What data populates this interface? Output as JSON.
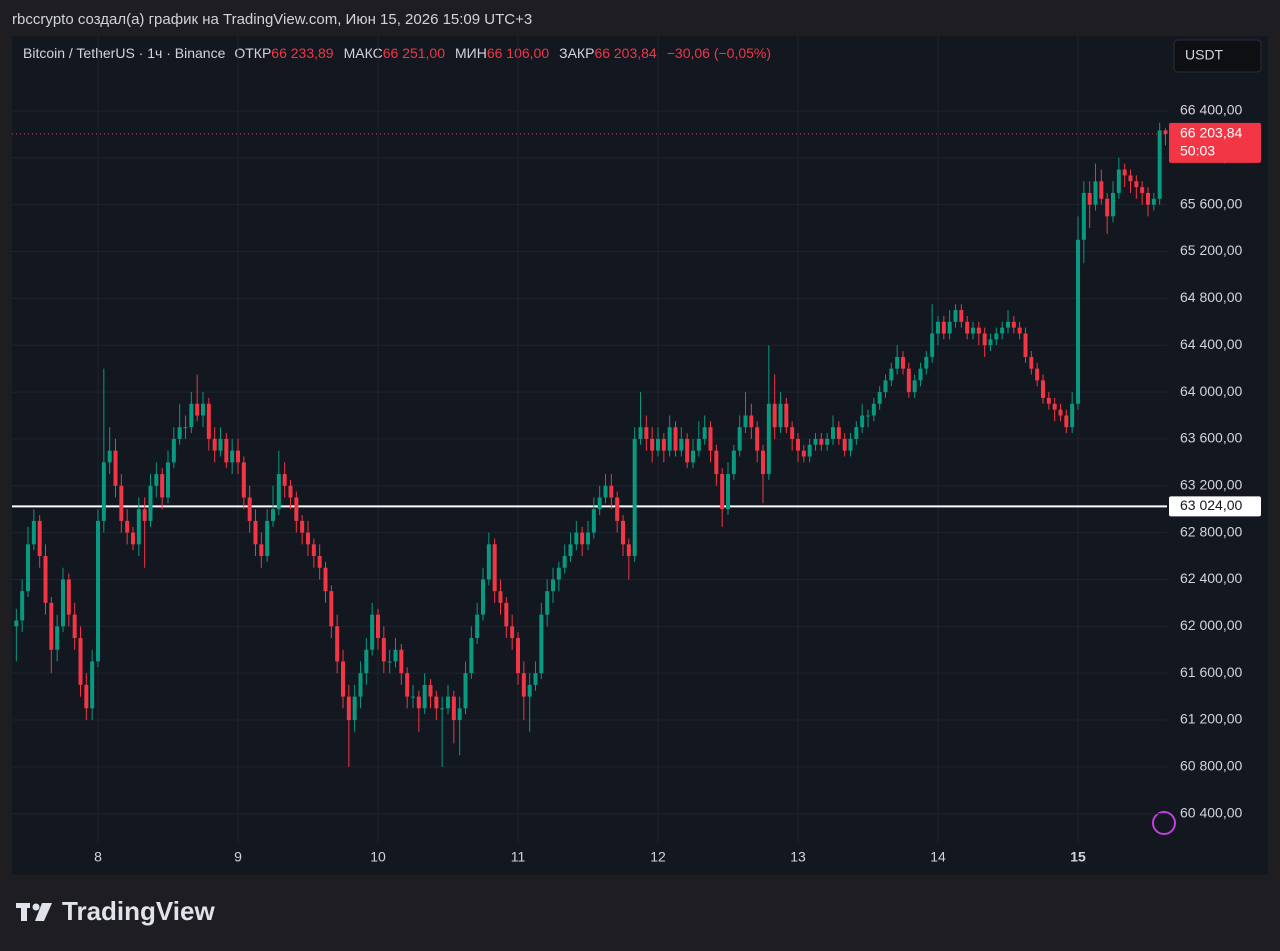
{
  "chart_data": {
    "type": "candlestick",
    "title": "rbccrypto создал(а) график на TradingView.com, Июн 15, 2026 15:09 UTC+3",
    "symbol": "Bitcoin / TetherUS · 1ч · Binance",
    "ohlc": [
      {
        "label": "ОТКР",
        "value": "66 233,89"
      },
      {
        "label": "МАКС",
        "value": "66 251,00"
      },
      {
        "label": "МИН",
        "value": "66 106,00"
      },
      {
        "label": "ЗАКР",
        "value": "66 203,84"
      }
    ],
    "change": "−30,06 (−0,05%)",
    "currency": "USDT",
    "logo": "TradingView",
    "up_color": "#089981",
    "down_color": "#f23645",
    "price_line": {
      "value": 63024,
      "label": "63 024,00",
      "color": "#ffffff"
    },
    "last_price": {
      "value": 66203.84,
      "label": "66 203,84",
      "countdown": "50:03"
    },
    "ylim": [
      60150,
      67040
    ],
    "yticks": [
      {
        "value": 60400,
        "label": "60 400,00"
      },
      {
        "value": 60800,
        "label": "60 800,00"
      },
      {
        "value": 61200,
        "label": "61 200,00"
      },
      {
        "value": 61600,
        "label": "61 600,00"
      },
      {
        "value": 62000,
        "label": "62 000,00"
      },
      {
        "value": 62400,
        "label": "62 400,00"
      },
      {
        "value": 62800,
        "label": "62 800,00"
      },
      {
        "value": 63200,
        "label": "63 200,00"
      },
      {
        "value": 63600,
        "label": "63 600,00"
      },
      {
        "value": 64000,
        "label": "64 000,00"
      },
      {
        "value": 64400,
        "label": "64 400,00"
      },
      {
        "value": 64800,
        "label": "64 800,00"
      },
      {
        "value": 65200,
        "label": "65 200,00"
      },
      {
        "value": 65600,
        "label": "65 600,00"
      },
      {
        "value": 66000,
        "label": "66 000,00"
      },
      {
        "value": 66400,
        "label": "66 400,00"
      }
    ],
    "grid": true,
    "categories": [
      null,
      null,
      null,
      null,
      null,
      null,
      null,
      null,
      null,
      null,
      null,
      null,
      null,
      null,
      "8",
      null,
      null,
      null,
      null,
      null,
      null,
      null,
      null,
      null,
      null,
      null,
      null,
      null,
      null,
      null,
      null,
      null,
      null,
      null,
      null,
      null,
      null,
      null,
      "9",
      null,
      null,
      null,
      null,
      null,
      null,
      null,
      null,
      null,
      null,
      null,
      null,
      null,
      null,
      null,
      null,
      null,
      null,
      null,
      null,
      null,
      null,
      null,
      "10",
      null,
      null,
      null,
      null,
      null,
      null,
      null,
      null,
      null,
      null,
      null,
      null,
      null,
      null,
      null,
      null,
      null,
      null,
      null,
      null,
      null,
      null,
      null,
      "11",
      null,
      null,
      null,
      null,
      null,
      null,
      null,
      null,
      null,
      null,
      null,
      null,
      null,
      null,
      null,
      null,
      null,
      null,
      null,
      null,
      null,
      null,
      null,
      "12",
      null,
      null,
      null,
      null,
      null,
      null,
      null,
      null,
      null,
      null,
      null,
      null,
      null,
      null,
      null,
      null,
      null,
      null,
      null,
      null,
      null,
      null,
      null,
      "13",
      null,
      null,
      null,
      null,
      null,
      null,
      null,
      null,
      null,
      null,
      null,
      null,
      null,
      null,
      null,
      null,
      null,
      null,
      null,
      null,
      null,
      null,
      null,
      "14",
      null,
      null,
      null,
      null,
      null,
      null,
      null,
      null,
      null,
      null,
      null,
      null,
      null,
      null,
      null,
      null,
      null,
      null,
      null,
      null,
      null,
      null,
      null,
      "15",
      null,
      null,
      null,
      null,
      null,
      null,
      null,
      null,
      null,
      null,
      null,
      null,
      null,
      null,
      null
    ],
    "candles": [
      [
        62000,
        62150,
        61700,
        62050
      ],
      [
        62050,
        62400,
        61950,
        62300
      ],
      [
        62300,
        62850,
        62250,
        62700
      ],
      [
        62700,
        63000,
        62650,
        62900
      ],
      [
        62900,
        62950,
        62500,
        62600
      ],
      [
        62600,
        62700,
        62100,
        62200
      ],
      [
        62200,
        62250,
        61600,
        61800
      ],
      [
        61800,
        62100,
        61700,
        62000
      ],
      [
        62000,
        62500,
        61950,
        62400
      ],
      [
        62400,
        62450,
        62000,
        62100
      ],
      [
        62100,
        62200,
        61800,
        61900
      ],
      [
        61900,
        62000,
        61400,
        61500
      ],
      [
        61500,
        61600,
        61200,
        61300
      ],
      [
        61300,
        61800,
        61200,
        61700
      ],
      [
        61700,
        63000,
        61650,
        62900
      ],
      [
        62900,
        64200,
        62800,
        63400
      ],
      [
        63400,
        63700,
        63300,
        63500
      ],
      [
        63500,
        63600,
        63100,
        63200
      ],
      [
        63200,
        63300,
        62800,
        62900
      ],
      [
        62900,
        63000,
        62700,
        62800
      ],
      [
        62800,
        62850,
        62650,
        62700
      ],
      [
        62700,
        63100,
        62600,
        63000
      ],
      [
        63000,
        63100,
        62500,
        62900
      ],
      [
        62900,
        63300,
        62850,
        63200
      ],
      [
        63200,
        63400,
        63100,
        63300
      ],
      [
        63300,
        63350,
        63000,
        63100
      ],
      [
        63100,
        63500,
        63050,
        63400
      ],
      [
        63400,
        63700,
        63350,
        63600
      ],
      [
        63600,
        63900,
        63550,
        63700
      ],
      [
        63700,
        63800,
        63600,
        63700
      ],
      [
        63700,
        64000,
        63650,
        63900
      ],
      [
        63900,
        64150,
        63750,
        63800
      ],
      [
        63800,
        64000,
        63700,
        63900
      ],
      [
        63900,
        63950,
        63500,
        63600
      ],
      [
        63600,
        63700,
        63400,
        63500
      ],
      [
        63500,
        63700,
        63450,
        63600
      ],
      [
        63600,
        63650,
        63350,
        63400
      ],
      [
        63400,
        63600,
        63300,
        63500
      ],
      [
        63500,
        63600,
        63300,
        63400
      ],
      [
        63400,
        63450,
        63000,
        63100
      ],
      [
        63100,
        63200,
        62800,
        62900
      ],
      [
        62900,
        63000,
        62600,
        62700
      ],
      [
        62700,
        62800,
        62500,
        62600
      ],
      [
        62600,
        63000,
        62550,
        62900
      ],
      [
        62900,
        63200,
        62850,
        63000
      ],
      [
        63000,
        63500,
        62950,
        63300
      ],
      [
        63300,
        63400,
        63100,
        63200
      ],
      [
        63200,
        63250,
        63000,
        63100
      ],
      [
        63100,
        63150,
        62800,
        62900
      ],
      [
        62900,
        62950,
        62700,
        62800
      ],
      [
        62800,
        62900,
        62600,
        62700
      ],
      [
        62700,
        62750,
        62500,
        62600
      ],
      [
        62600,
        62700,
        62400,
        62500
      ],
      [
        62500,
        62550,
        62200,
        62300
      ],
      [
        62300,
        62350,
        61900,
        62000
      ],
      [
        62000,
        62100,
        61600,
        61700
      ],
      [
        61700,
        61800,
        61300,
        61400
      ],
      [
        61400,
        61500,
        60800,
        61200
      ],
      [
        61200,
        61500,
        61100,
        61400
      ],
      [
        61400,
        61700,
        61300,
        61600
      ],
      [
        61600,
        61900,
        61500,
        61800
      ],
      [
        61800,
        62200,
        61750,
        62100
      ],
      [
        62100,
        62150,
        61800,
        61900
      ],
      [
        61900,
        62000,
        61600,
        61700
      ],
      [
        61700,
        61800,
        61600,
        61700
      ],
      [
        61700,
        61900,
        61650,
        61800
      ],
      [
        61800,
        61850,
        61500,
        61600
      ],
      [
        61600,
        61650,
        61300,
        61400
      ],
      [
        61400,
        61500,
        61300,
        61400
      ],
      [
        61400,
        61450,
        61100,
        61300
      ],
      [
        61300,
        61600,
        61250,
        61500
      ],
      [
        61500,
        61550,
        61300,
        61400
      ],
      [
        61400,
        61450,
        61200,
        61300
      ],
      [
        61300,
        61400,
        60800,
        61300
      ],
      [
        61300,
        61500,
        61250,
        61400
      ],
      [
        61400,
        61450,
        61000,
        61200
      ],
      [
        61200,
        61400,
        60900,
        61300
      ],
      [
        61300,
        61700,
        61250,
        61600
      ],
      [
        61600,
        62000,
        61550,
        61900
      ],
      [
        61900,
        62200,
        61850,
        62100
      ],
      [
        62100,
        62500,
        62050,
        62400
      ],
      [
        62400,
        62800,
        62350,
        62700
      ],
      [
        62700,
        62750,
        62200,
        62300
      ],
      [
        62300,
        62400,
        62100,
        62200
      ],
      [
        62200,
        62250,
        61900,
        62000
      ],
      [
        62000,
        62100,
        61800,
        61900
      ],
      [
        61900,
        61950,
        61500,
        61600
      ],
      [
        61600,
        61700,
        61200,
        61400
      ],
      [
        61400,
        61600,
        61100,
        61500
      ],
      [
        61500,
        61700,
        61450,
        61600
      ],
      [
        61600,
        62200,
        61550,
        62100
      ],
      [
        62100,
        62400,
        62000,
        62300
      ],
      [
        62300,
        62500,
        62200,
        62400
      ],
      [
        62400,
        62550,
        62300,
        62500
      ],
      [
        62500,
        62700,
        62450,
        62600
      ],
      [
        62600,
        62800,
        62550,
        62700
      ],
      [
        62700,
        62900,
        62650,
        62800
      ],
      [
        62800,
        62850,
        62600,
        62700
      ],
      [
        62700,
        62900,
        62650,
        62800
      ],
      [
        62800,
        63100,
        62750,
        63000
      ],
      [
        63000,
        63200,
        62950,
        63100
      ],
      [
        63100,
        63300,
        63050,
        63200
      ],
      [
        63200,
        63300,
        63000,
        63100
      ],
      [
        63100,
        63150,
        62800,
        62900
      ],
      [
        62900,
        62950,
        62600,
        62700
      ],
      [
        62700,
        62750,
        62400,
        62600
      ],
      [
        62600,
        63700,
        62550,
        63600
      ],
      [
        63600,
        64000,
        63550,
        63700
      ],
      [
        63700,
        63800,
        63500,
        63600
      ],
      [
        63600,
        63700,
        63400,
        63500
      ],
      [
        63500,
        63700,
        63450,
        63600
      ],
      [
        63600,
        63650,
        63400,
        63500
      ],
      [
        63500,
        63800,
        63450,
        63700
      ],
      [
        63700,
        63750,
        63450,
        63500
      ],
      [
        63500,
        63700,
        63450,
        63600
      ],
      [
        63600,
        63650,
        63350,
        63400
      ],
      [
        63400,
        63600,
        63350,
        63500
      ],
      [
        63500,
        63750,
        63450,
        63600
      ],
      [
        63600,
        63800,
        63550,
        63700
      ],
      [
        63700,
        63750,
        63400,
        63500
      ],
      [
        63500,
        63550,
        63200,
        63300
      ],
      [
        63300,
        63350,
        62850,
        63000
      ],
      [
        63000,
        63400,
        62950,
        63300
      ],
      [
        63300,
        63550,
        63250,
        63500
      ],
      [
        63500,
        63800,
        63450,
        63700
      ],
      [
        63700,
        64000,
        63650,
        63800
      ],
      [
        63800,
        63900,
        63600,
        63700
      ],
      [
        63700,
        63750,
        63400,
        63500
      ],
      [
        63500,
        63550,
        63050,
        63300
      ],
      [
        63300,
        64400,
        63250,
        63900
      ],
      [
        63900,
        64150,
        63600,
        63700
      ],
      [
        63700,
        64000,
        63650,
        63900
      ],
      [
        63900,
        63950,
        63650,
        63700
      ],
      [
        63700,
        63750,
        63500,
        63600
      ],
      [
        63600,
        63650,
        63400,
        63500
      ],
      [
        63500,
        63550,
        63400,
        63450
      ],
      [
        63450,
        63600,
        63400,
        63550
      ],
      [
        63550,
        63650,
        63500,
        63600
      ],
      [
        63600,
        63650,
        63500,
        63550
      ],
      [
        63550,
        63650,
        63500,
        63600
      ],
      [
        63600,
        63800,
        63550,
        63700
      ],
      [
        63700,
        63750,
        63550,
        63600
      ],
      [
        63600,
        63650,
        63450,
        63500
      ],
      [
        63500,
        63650,
        63450,
        63600
      ],
      [
        63600,
        63750,
        63550,
        63700
      ],
      [
        63700,
        63900,
        63650,
        63800
      ],
      [
        63800,
        63850,
        63700,
        63800
      ],
      [
        63800,
        63950,
        63750,
        63900
      ],
      [
        63900,
        64050,
        63850,
        64000
      ],
      [
        64000,
        64150,
        63950,
        64100
      ],
      [
        64100,
        64250,
        64050,
        64200
      ],
      [
        64200,
        64400,
        64150,
        64300
      ],
      [
        64300,
        64350,
        64150,
        64200
      ],
      [
        64200,
        64250,
        63950,
        64000
      ],
      [
        64000,
        64150,
        63950,
        64100
      ],
      [
        64100,
        64250,
        64050,
        64200
      ],
      [
        64200,
        64350,
        64150,
        64300
      ],
      [
        64300,
        64750,
        64250,
        64500
      ],
      [
        64500,
        64650,
        64400,
        64600
      ],
      [
        64600,
        64650,
        64450,
        64500
      ],
      [
        64500,
        64700,
        64450,
        64600
      ],
      [
        64600,
        64750,
        64550,
        64700
      ],
      [
        64700,
        64750,
        64550,
        64600
      ],
      [
        64600,
        64650,
        64450,
        64500
      ],
      [
        64500,
        64600,
        64450,
        64550
      ],
      [
        64550,
        64600,
        64400,
        64500
      ],
      [
        64500,
        64550,
        64300,
        64400
      ],
      [
        64400,
        64500,
        64350,
        64450
      ],
      [
        64450,
        64550,
        64400,
        64500
      ],
      [
        64500,
        64600,
        64450,
        64550
      ],
      [
        64550,
        64700,
        64500,
        64600
      ],
      [
        64600,
        64650,
        64500,
        64550
      ],
      [
        64550,
        64600,
        64450,
        64500
      ],
      [
        64500,
        64550,
        64250,
        64300
      ],
      [
        64300,
        64350,
        64150,
        64200
      ],
      [
        64200,
        64250,
        64050,
        64100
      ],
      [
        64100,
        64150,
        63900,
        63950
      ],
      [
        63950,
        64000,
        63850,
        63900
      ],
      [
        63900,
        63950,
        63750,
        63850
      ],
      [
        63850,
        63900,
        63750,
        63800
      ],
      [
        63800,
        63850,
        63650,
        63700
      ],
      [
        63700,
        64000,
        63650,
        63900
      ],
      [
        63900,
        65500,
        63850,
        65300
      ],
      [
        65300,
        65800,
        65100,
        65700
      ],
      [
        65700,
        65800,
        65400,
        65600
      ],
      [
        65600,
        65950,
        65550,
        65800
      ],
      [
        65800,
        65900,
        65600,
        65650
      ],
      [
        65650,
        65700,
        65350,
        65500
      ],
      [
        65500,
        65800,
        65450,
        65700
      ],
      [
        65700,
        66000,
        65650,
        65900
      ],
      [
        65900,
        65950,
        65750,
        65850
      ],
      [
        65850,
        65900,
        65700,
        65800
      ],
      [
        65800,
        65850,
        65650,
        65750
      ],
      [
        65750,
        65800,
        65600,
        65700
      ],
      [
        65700,
        65750,
        65500,
        65600
      ],
      [
        65600,
        65700,
        65550,
        65650
      ],
      [
        65650,
        66300,
        65600,
        66233.89
      ],
      [
        66233.89,
        66251,
        66106,
        66203.84
      ]
    ]
  }
}
